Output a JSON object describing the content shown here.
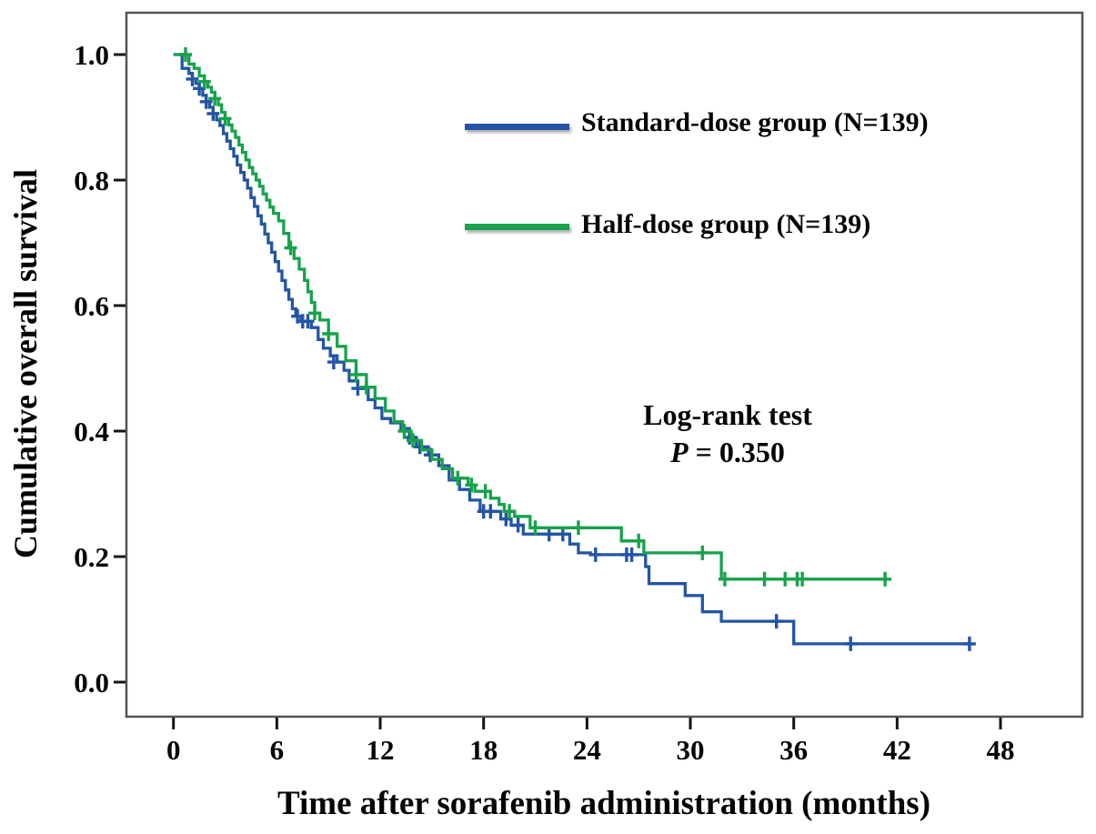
{
  "chart_data": {
    "type": "line",
    "subtype": "kaplan_meier_step_survival",
    "title": "",
    "xlabel": "Time after sorafenib administration (months)",
    "ylabel": "Cumulative overall survival",
    "xlim": [
      0,
      48
    ],
    "ylim": [
      0.0,
      1.0
    ],
    "xticks": [
      "0",
      "6",
      "12",
      "18",
      "24",
      "30",
      "36",
      "42",
      "48"
    ],
    "yticks": [
      "1.0",
      "0.8",
      "0.6",
      "0.4",
      "0.2",
      "0.0"
    ],
    "grid": false,
    "legend_position": "inside-upper-right",
    "annotation": {
      "line1": "Log-rank test",
      "p_symbol": "P",
      "p_rest": " = 0.350"
    },
    "series": [
      {
        "name": "Standard-dose group (N=139)",
        "color": "#2355a4",
        "end_time": 46.2,
        "points": [
          [
            0,
            1.0
          ],
          [
            0.5,
            0.978
          ],
          [
            0.9,
            0.97
          ],
          [
            1.1,
            0.961
          ],
          [
            1.3,
            0.954
          ],
          [
            1.5,
            0.946
          ],
          [
            1.7,
            0.935
          ],
          [
            1.9,
            0.925
          ],
          [
            2.1,
            0.916
          ],
          [
            2.3,
            0.906
          ],
          [
            2.5,
            0.896
          ],
          [
            2.7,
            0.887
          ],
          [
            2.9,
            0.874
          ],
          [
            3.1,
            0.862
          ],
          [
            3.3,
            0.85
          ],
          [
            3.5,
            0.838
          ],
          [
            3.7,
            0.824
          ],
          [
            3.9,
            0.812
          ],
          [
            4.1,
            0.8
          ],
          [
            4.3,
            0.787
          ],
          [
            4.5,
            0.772
          ],
          [
            4.7,
            0.758
          ],
          [
            4.9,
            0.743
          ],
          [
            5.1,
            0.73
          ],
          [
            5.3,
            0.714
          ],
          [
            5.5,
            0.7
          ],
          [
            5.7,
            0.685
          ],
          [
            5.9,
            0.67
          ],
          [
            6.1,
            0.655
          ],
          [
            6.3,
            0.64
          ],
          [
            6.5,
            0.625
          ],
          [
            6.7,
            0.61
          ],
          [
            6.9,
            0.595
          ],
          [
            7.1,
            0.583
          ],
          [
            7.4,
            0.575
          ],
          [
            8.0,
            0.565
          ],
          [
            8.4,
            0.546
          ],
          [
            8.7,
            0.532
          ],
          [
            9.1,
            0.52
          ],
          [
            9.5,
            0.51
          ],
          [
            9.9,
            0.497
          ],
          [
            10.2,
            0.48
          ],
          [
            10.7,
            0.468
          ],
          [
            11.3,
            0.45
          ],
          [
            11.7,
            0.437
          ],
          [
            12.1,
            0.42
          ],
          [
            12.6,
            0.413
          ],
          [
            13.2,
            0.404
          ],
          [
            13.7,
            0.39
          ],
          [
            14.1,
            0.375
          ],
          [
            14.8,
            0.362
          ],
          [
            15.4,
            0.345
          ],
          [
            16.0,
            0.322
          ],
          [
            16.6,
            0.307
          ],
          [
            17.2,
            0.29
          ],
          [
            17.8,
            0.272
          ],
          [
            19.0,
            0.26
          ],
          [
            19.6,
            0.25
          ],
          [
            20.3,
            0.236
          ],
          [
            23.0,
            0.22
          ],
          [
            23.5,
            0.206
          ],
          [
            24.2,
            0.203
          ],
          [
            27.4,
            0.184
          ],
          [
            27.6,
            0.157
          ],
          [
            29.7,
            0.138
          ],
          [
            30.7,
            0.112
          ],
          [
            31.8,
            0.097
          ],
          [
            36.0,
            0.061
          ]
        ],
        "censors": [
          [
            1.1,
            0.961
          ],
          [
            1.5,
            0.946
          ],
          [
            1.9,
            0.925
          ],
          [
            2.3,
            0.906
          ],
          [
            7.2,
            0.583
          ],
          [
            7.5,
            0.575
          ],
          [
            7.8,
            0.575
          ],
          [
            9.3,
            0.51
          ],
          [
            10.7,
            0.468
          ],
          [
            13.7,
            0.39
          ],
          [
            14.3,
            0.375
          ],
          [
            14.9,
            0.362
          ],
          [
            18.0,
            0.272
          ],
          [
            18.4,
            0.272
          ],
          [
            19.3,
            0.26
          ],
          [
            20.0,
            0.25
          ],
          [
            21.8,
            0.236
          ],
          [
            22.6,
            0.236
          ],
          [
            24.5,
            0.203
          ],
          [
            26.3,
            0.203
          ],
          [
            26.6,
            0.203
          ],
          [
            35.0,
            0.097
          ],
          [
            39.3,
            0.061
          ],
          [
            46.2,
            0.061
          ]
        ]
      },
      {
        "name": "Half-dose group (N=139)",
        "color": "#17a24b",
        "end_time": 41.3,
        "points": [
          [
            0,
            1.0
          ],
          [
            0.9,
            0.985
          ],
          [
            1.2,
            0.978
          ],
          [
            1.5,
            0.966
          ],
          [
            1.8,
            0.957
          ],
          [
            2.0,
            0.948
          ],
          [
            2.2,
            0.94
          ],
          [
            2.4,
            0.93
          ],
          [
            2.6,
            0.92
          ],
          [
            2.8,
            0.908
          ],
          [
            3.0,
            0.898
          ],
          [
            3.2,
            0.888
          ],
          [
            3.4,
            0.878
          ],
          [
            3.6,
            0.868
          ],
          [
            3.8,
            0.856
          ],
          [
            4.0,
            0.844
          ],
          [
            4.2,
            0.832
          ],
          [
            4.4,
            0.82
          ],
          [
            4.6,
            0.81
          ],
          [
            4.8,
            0.8
          ],
          [
            5.0,
            0.79
          ],
          [
            5.2,
            0.778
          ],
          [
            5.4,
            0.768
          ],
          [
            5.6,
            0.757
          ],
          [
            5.8,
            0.747
          ],
          [
            6.1,
            0.735
          ],
          [
            6.4,
            0.715
          ],
          [
            6.7,
            0.692
          ],
          [
            7.0,
            0.675
          ],
          [
            7.3,
            0.658
          ],
          [
            7.6,
            0.64
          ],
          [
            7.8,
            0.622
          ],
          [
            8.0,
            0.605
          ],
          [
            8.2,
            0.588
          ],
          [
            8.5,
            0.577
          ],
          [
            9.0,
            0.555
          ],
          [
            9.5,
            0.535
          ],
          [
            10.0,
            0.512
          ],
          [
            10.6,
            0.49
          ],
          [
            11.2,
            0.47
          ],
          [
            11.7,
            0.452
          ],
          [
            12.3,
            0.432
          ],
          [
            12.8,
            0.415
          ],
          [
            13.3,
            0.4
          ],
          [
            13.8,
            0.385
          ],
          [
            14.4,
            0.37
          ],
          [
            15.0,
            0.355
          ],
          [
            15.6,
            0.34
          ],
          [
            16.2,
            0.325
          ],
          [
            17.1,
            0.314
          ],
          [
            17.5,
            0.304
          ],
          [
            18.4,
            0.293
          ],
          [
            18.9,
            0.283
          ],
          [
            19.2,
            0.272
          ],
          [
            19.8,
            0.264
          ],
          [
            20.7,
            0.246
          ],
          [
            26.0,
            0.225
          ],
          [
            27.3,
            0.206
          ],
          [
            31.8,
            0.164
          ]
        ],
        "censors": [
          [
            0.7,
            1.0
          ],
          [
            1.8,
            0.957
          ],
          [
            2.4,
            0.93
          ],
          [
            3.0,
            0.898
          ],
          [
            6.8,
            0.692
          ],
          [
            8.2,
            0.588
          ],
          [
            9.0,
            0.555
          ],
          [
            10.6,
            0.49
          ],
          [
            11.2,
            0.47
          ],
          [
            13.4,
            0.4
          ],
          [
            13.9,
            0.385
          ],
          [
            16.5,
            0.325
          ],
          [
            17.3,
            0.314
          ],
          [
            18.1,
            0.304
          ],
          [
            19.5,
            0.272
          ],
          [
            21.0,
            0.246
          ],
          [
            23.5,
            0.246
          ],
          [
            27.0,
            0.225
          ],
          [
            30.7,
            0.206
          ],
          [
            32.0,
            0.164
          ],
          [
            34.3,
            0.164
          ],
          [
            35.5,
            0.164
          ],
          [
            36.2,
            0.164
          ],
          [
            36.5,
            0.164
          ],
          [
            41.3,
            0.164
          ]
        ]
      }
    ]
  },
  "colors": {
    "frame": "#535353",
    "tick": "#141414",
    "standard_dose": "#2355a4",
    "half_dose": "#17a24b"
  }
}
